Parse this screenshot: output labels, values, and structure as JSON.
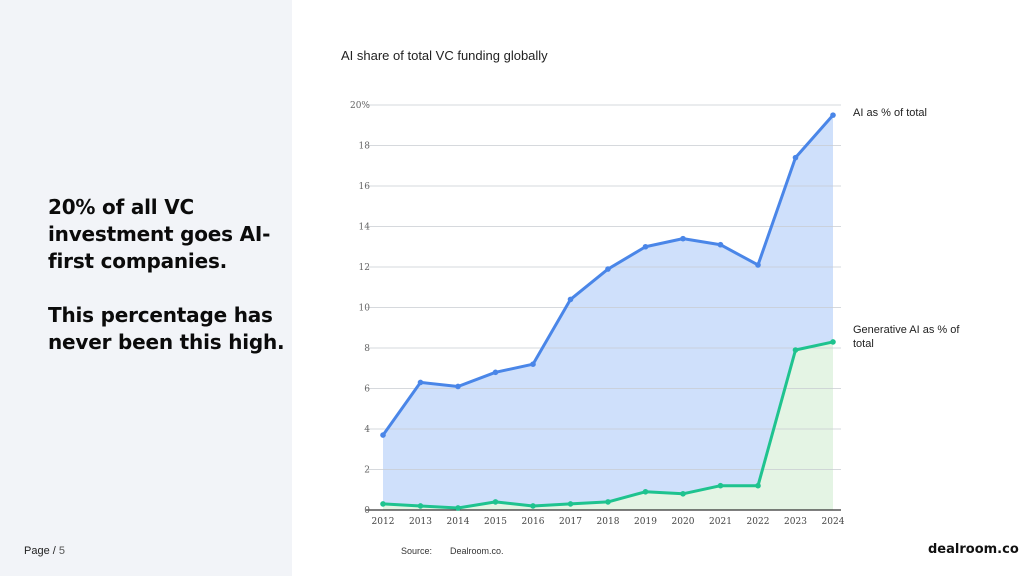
{
  "headline": {
    "line1": "20% of all VC investment goes AI-first companies.",
    "line2": "This percentage has never been this high."
  },
  "footer": {
    "page_prefix": "Page / ",
    "page_number": "5",
    "source_label": "Source:",
    "source_value": "Dealroom.co.",
    "brand": "dealroom.co"
  },
  "chart_data": {
    "type": "area",
    "title": "AI share of total VC funding globally",
    "x": [
      "2012",
      "2013",
      "2014",
      "2015",
      "2016",
      "2017",
      "2018",
      "2019",
      "2020",
      "2021",
      "2022",
      "2023",
      "2024"
    ],
    "ylim": [
      0,
      20
    ],
    "yticks": [
      "0",
      "2",
      "4",
      "6",
      "8",
      "10",
      "12",
      "14",
      "16",
      "18",
      "20%"
    ],
    "grid": true,
    "series": [
      {
        "name": "AI as % of total",
        "values": [
          3.7,
          6.3,
          6.1,
          6.8,
          7.2,
          10.4,
          11.9,
          13.0,
          13.4,
          13.1,
          12.1,
          17.4,
          19.5
        ],
        "color": "#4a86e8",
        "fill": "#cfe0fb"
      },
      {
        "name": "Generative AI as % of total",
        "values": [
          0.3,
          0.2,
          0.1,
          0.4,
          0.2,
          0.3,
          0.4,
          0.9,
          0.8,
          1.2,
          1.2,
          7.9,
          8.3
        ],
        "color": "#1fc38f",
        "fill": "#e4f4e4"
      }
    ]
  }
}
